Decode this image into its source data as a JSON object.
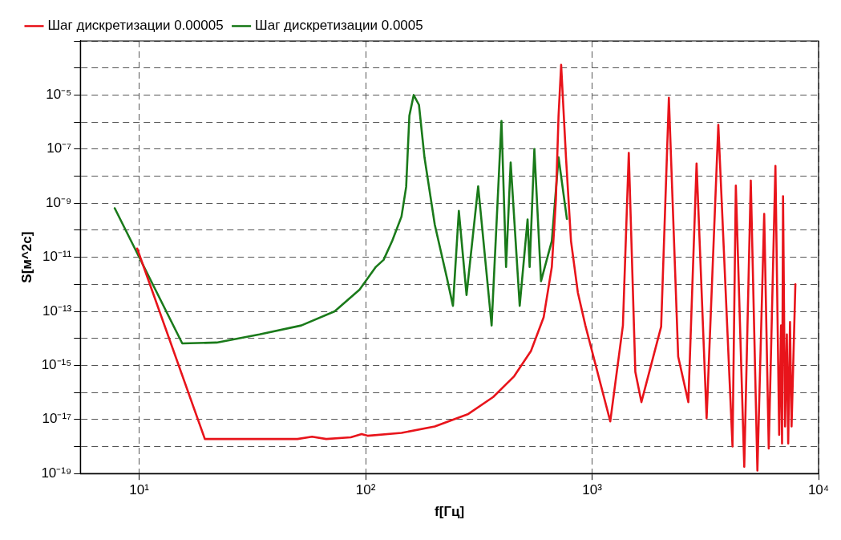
{
  "chart_data": {
    "type": "line",
    "xlabel": "f[Гц]",
    "ylabel": "S[м^2c]",
    "log": "xy",
    "grid": true,
    "legend": "top",
    "marker": "none",
    "line_style": "solid",
    "xlim": [
      5.5,
      10000
    ],
    "xticks": [
      {
        "value": 10,
        "label": "10¹"
      },
      {
        "value": 100,
        "label": "10²"
      },
      {
        "value": 1000,
        "label": "10³"
      },
      {
        "value": 10000,
        "label": "10⁴"
      }
    ],
    "ylim": [
      1e-19,
      0.001
    ],
    "yticks": [
      {
        "value": 1e-19,
        "label": "10⁻¹⁹"
      },
      {
        "value": 1e-18,
        "label": null
      },
      {
        "value": 1e-17,
        "label": "10⁻¹⁷"
      },
      {
        "value": 1e-16,
        "label": null
      },
      {
        "value": 1e-15,
        "label": "10⁻¹⁵"
      },
      {
        "value": 1e-14,
        "label": null
      },
      {
        "value": 1e-13,
        "label": "10⁻¹³"
      },
      {
        "value": 1e-12,
        "label": null
      },
      {
        "value": 1e-11,
        "label": "10⁻¹¹"
      },
      {
        "value": 1e-10,
        "label": null
      },
      {
        "value": 1e-09,
        "label": "10⁻⁹"
      },
      {
        "value": 1e-08,
        "label": null
      },
      {
        "value": 1e-07,
        "label": "10⁻⁷"
      },
      {
        "value": 1e-06,
        "label": null
      },
      {
        "value": 1e-05,
        "label": "10⁻⁵"
      },
      {
        "value": 0.0001,
        "label": null
      },
      {
        "value": 0.001,
        "label": null
      }
    ],
    "series": [
      {
        "name": "Шаг дискретизации 0.00005",
        "color": "#e8141b",
        "x": [
          9.8,
          19.5,
          28.6,
          50,
          58,
          67,
          86,
          96,
          102,
          144,
          202,
          284,
          366,
          453,
          537,
          611,
          664,
          692,
          711,
          730,
          767,
          807,
          865,
          934,
          1203,
          1368,
          1452,
          1552,
          1651,
          2018,
          2183,
          2400,
          2661,
          2893,
          3204,
          3609,
          4169,
          4313,
          4698,
          5021,
          5370,
          5754,
          6026,
          6450,
          6700,
          6830,
          6900,
          6970,
          7112,
          7244,
          7345,
          7482,
          7601,
          7900
        ],
        "values": [
          2.1e-11,
          1.9e-18,
          1.9e-18,
          1.9e-18,
          2.3e-18,
          1.9e-18,
          2.2e-18,
          2.9e-18,
          2.5e-18,
          3.2e-18,
          5.5e-18,
          1.6e-17,
          6.8e-17,
          4e-16,
          3.4e-15,
          6e-14,
          4.4e-12,
          1.3e-09,
          1.7e-06,
          0.00013,
          4.8e-08,
          4e-11,
          5e-13,
          3e-14,
          8.5e-18,
          3e-14,
          7.2e-08,
          5.8e-16,
          4.4e-17,
          2.7e-14,
          7.9e-06,
          2.1e-15,
          4.4e-17,
          2.9e-08,
          1.1e-17,
          7.9e-07,
          1e-18,
          4.5e-09,
          1.8e-19,
          6.8e-09,
          1.3e-19,
          4e-10,
          8.5e-19,
          2.4e-08,
          2.7e-18,
          3e-14,
          1.3e-18,
          1.8e-09,
          5.5e-18,
          1.4e-14,
          1.3e-18,
          4e-14,
          5.5e-18,
          1e-12
        ]
      },
      {
        "name": "Шаг дискретизации 0.0005",
        "color": "#1a7a1a",
        "x": [
          7.8,
          15.5,
          22,
          34,
          52,
          73,
          94,
          111,
          120,
          131,
          144,
          151,
          156,
          163,
          172,
          182,
          202,
          229,
          243,
          258,
          279,
          314,
          360,
          398,
          417,
          437,
          479,
          519,
          530,
          556,
          595,
          664,
          711,
          774
        ],
        "values": [
          6.5e-10,
          6.5e-15,
          7e-15,
          1.4e-14,
          3e-14,
          1e-13,
          6.3e-13,
          4.4e-12,
          8e-12,
          4e-11,
          3.2e-10,
          4e-09,
          1.7e-06,
          1e-05,
          4.3e-06,
          4.8e-08,
          1.6e-10,
          1.6e-12,
          1.6e-13,
          5.2e-10,
          4e-13,
          4.2e-09,
          3e-14,
          1.1e-06,
          4.4e-12,
          3.2e-08,
          1.6e-13,
          2.5e-10,
          4.4e-12,
          1e-07,
          1.3e-12,
          4e-11,
          5e-08,
          2.6e-10
        ]
      }
    ]
  }
}
